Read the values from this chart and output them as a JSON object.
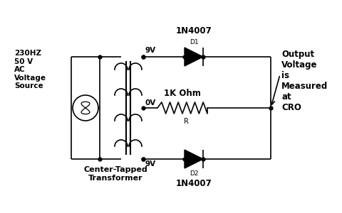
{
  "bg_color": "#ffffff",
  "line_color": "#000000",
  "source_label": "230HZ\n50 V\nAC\nVoltage\nSource",
  "transformer_label": "Center-Tapped\nTransformer",
  "diode1_label": "1N4007",
  "diode2_label": "1N4007",
  "d1_label": "D1",
  "d2_label": "D2",
  "resistor_label": "1K Ohm",
  "r_label": "R",
  "tap_9v_top": "9V",
  "tap_0v": "0V",
  "tap_9v_bot": "9V",
  "output_label": "Output\nVoltage\nis\nMeasured\nat\nCRO",
  "lw": 1.2
}
